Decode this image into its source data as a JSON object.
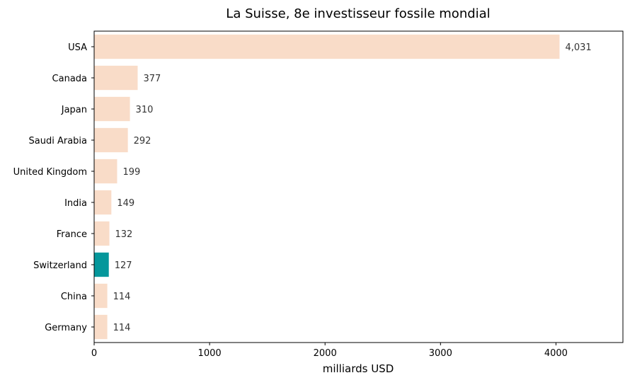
{
  "chart_data": {
    "type": "bar",
    "orientation": "horizontal",
    "title": "La Suisse, 8e investisseur fossile mondial",
    "xlabel": "milliards USD",
    "ylabel": "",
    "xlim": [
      0,
      4580
    ],
    "xticks": [
      0,
      1000,
      2000,
      3000,
      4000
    ],
    "grid": false,
    "categories": [
      "USA",
      "Canada",
      "Japan",
      "Saudi Arabia",
      "United Kingdom",
      "India",
      "France",
      "Switzerland",
      "China",
      "Germany"
    ],
    "values": [
      4031,
      377,
      310,
      292,
      199,
      149,
      132,
      127,
      114,
      114
    ],
    "value_labels": [
      "4,031",
      "377",
      "310",
      "292",
      "199",
      "149",
      "132",
      "127",
      "114",
      "114"
    ],
    "highlight": "Switzerland",
    "colors": {
      "bar": "#f9dcc8",
      "highlight": "#05979b",
      "text": "#000000",
      "label": "#333333"
    }
  }
}
